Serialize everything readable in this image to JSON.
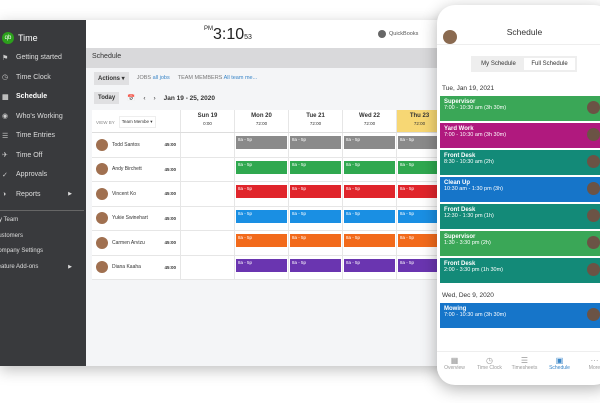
{
  "app": {
    "name": "Time",
    "logo": "qb"
  },
  "sidebar": {
    "items": [
      {
        "label": "Getting started",
        "icon": "flag-icon"
      },
      {
        "label": "Time Clock",
        "icon": "clock-icon"
      },
      {
        "label": "Schedule",
        "icon": "calendar-icon",
        "active": true
      },
      {
        "label": "Who's Working",
        "icon": "location-icon"
      },
      {
        "label": "Time Entries",
        "icon": "entries-icon"
      },
      {
        "label": "Time Off",
        "icon": "plane-icon"
      },
      {
        "label": "Approvals",
        "icon": "check-icon"
      },
      {
        "label": "Reports",
        "icon": "pie-icon",
        "arrow": "▶"
      }
    ],
    "sub": [
      {
        "label": "My Team"
      },
      {
        "label": "Customers"
      },
      {
        "label": "Company Settings"
      },
      {
        "label": "Feature Add-ons",
        "arrow": "▶"
      }
    ]
  },
  "header": {
    "ampm": "PM",
    "time": "3:10",
    "seconds": "53",
    "quickbooks": "QuickBooks"
  },
  "schedule": {
    "title": "Schedule",
    "actions": "Actions ▾",
    "jobs_label": "JOBS",
    "jobs_value": "all jobs",
    "team_label": "TEAM MEMBERS",
    "team_value": "All team me...",
    "today": "Today",
    "prev": "‹",
    "next": "›",
    "range": "Jan 19 - 25, 2020",
    "view_by": "VIEW BY",
    "view_select": "Team Membe ▾",
    "my_btn": "My"
  },
  "days": [
    {
      "label": "Sun 19",
      "hours": "0:00"
    },
    {
      "label": "Mon 20",
      "hours": "72:00"
    },
    {
      "label": "Tue 21",
      "hours": "72:00"
    },
    {
      "label": "Wed 22",
      "hours": "72:00"
    },
    {
      "label": "Thu 23",
      "hours": "72:00",
      "highlight": "#f7d774"
    }
  ],
  "members": [
    {
      "name": "Todd Santos",
      "hours": "45:00",
      "color": "#8a8a8a",
      "shift": "8a - 5p"
    },
    {
      "name": "Andy Birchett",
      "hours": "45:00",
      "color": "#2fa84f",
      "shift": "8a - 5p"
    },
    {
      "name": "Vincent Ko",
      "hours": "45:00",
      "color": "#e0252b",
      "shift": "8a - 5p"
    },
    {
      "name": "Yukie Swinehart",
      "hours": "45:00",
      "color": "#1a8fe3",
      "shift": "8a - 5p"
    },
    {
      "name": "Carmen Arvizu",
      "hours": "45:00",
      "color": "#f26a1b",
      "shift": "8a - 5p"
    },
    {
      "name": "Diana Kaaha",
      "hours": "45:00",
      "color": "#6a35b0",
      "shift": "8a - 5p"
    }
  ],
  "mobile": {
    "title": "Schedule",
    "tabs": [
      "My Schedule",
      "Full Schedule"
    ],
    "date1": "Tue, Jan 19, 2021",
    "cards1": [
      {
        "title": "Supervisor",
        "time": "7:00 - 10:30 am (3h 30m)",
        "color": "#3aa757"
      },
      {
        "title": "Yard Work",
        "time": "7:00 - 10:30 am (3h 30m)",
        "color": "#b0197e"
      },
      {
        "title": "Front Desk",
        "time": "8:30 - 10:30 am (2h)",
        "color": "#138a78"
      },
      {
        "title": "Clean Up",
        "time": "10:30 am - 1:30 pm (3h)",
        "color": "#1675c9"
      },
      {
        "title": "Front Desk",
        "time": "12:30 - 1:30 pm (1h)",
        "color": "#138a78"
      },
      {
        "title": "Supervisor",
        "time": "1:30 - 3:30 pm (2h)",
        "color": "#3aa757"
      },
      {
        "title": "Front Desk",
        "time": "2:00 - 3:30 pm (1h 30m)",
        "color": "#138a78"
      }
    ],
    "date2": "Wed, Dec 9, 2020",
    "cards2": [
      {
        "title": "Mowing",
        "time": "7:00 - 10:30 am (3h 30m)",
        "color": "#1675c9"
      }
    ],
    "nav": [
      {
        "label": "Overview",
        "icon": "grid-icon",
        "glyph": "▦"
      },
      {
        "label": "Time Clock",
        "icon": "clock-icon",
        "glyph": "◷"
      },
      {
        "label": "Timesheets",
        "icon": "timesheet-icon",
        "glyph": "☰"
      },
      {
        "label": "Schedule",
        "icon": "calendar-icon",
        "glyph": "▣",
        "active": true
      },
      {
        "label": "More",
        "icon": "more-icon",
        "glyph": "···"
      }
    ]
  }
}
